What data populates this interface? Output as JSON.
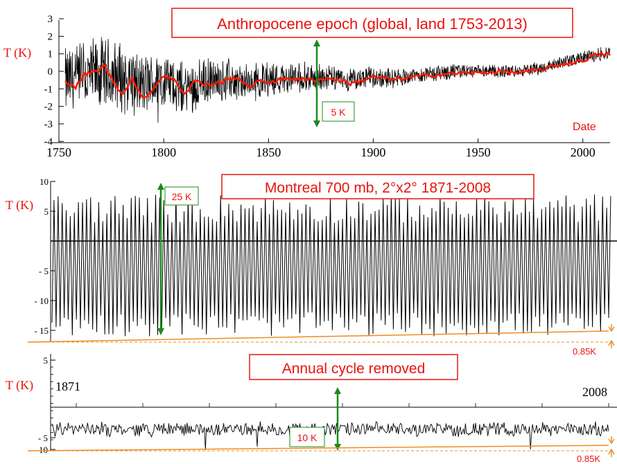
{
  "colors": {
    "trace": "#000000",
    "smooth": "#ff1a00",
    "label": "#e8130e",
    "green": "#1a8a1a",
    "orange": "#f08a24"
  },
  "chart_data": [
    {
      "type": "line",
      "title": "Anthropocene epoch (global, land 1753-2013)",
      "ylabel": "T (K)",
      "xlabel": "Date",
      "xlim": [
        1750,
        2013
      ],
      "ylim": [
        -4,
        3
      ],
      "xticks": [
        "1750",
        "1800",
        "1850",
        "1900",
        "1950",
        "2000"
      ],
      "yticks": [
        "3",
        "2",
        "1",
        "0",
        "-1",
        "-2",
        "-3",
        "-4"
      ],
      "scale_bar": "5 K",
      "series": [
        {
          "key": "monthly",
          "anchors_x": [
            1753,
            1760,
            1770,
            1780,
            1790,
            1800,
            1810,
            1820,
            1830,
            1840,
            1850,
            1860,
            1870,
            1880,
            1890,
            1900,
            1910,
            1920,
            1930,
            1940,
            1950,
            1960,
            1970,
            1980,
            1990,
            2000,
            2013
          ],
          "anchors_y": [
            -0.6,
            -0.4,
            -0.2,
            -0.3,
            -0.8,
            -0.5,
            -1.0,
            -0.6,
            -0.5,
            -0.7,
            -0.4,
            -0.4,
            -0.3,
            -0.4,
            -0.5,
            -0.3,
            -0.4,
            -0.2,
            -0.1,
            0.0,
            0.0,
            0.0,
            0.0,
            0.2,
            0.5,
            0.8,
            1.1
          ],
          "noise_amp": [
            2.2,
            2.4,
            2.4,
            2.3,
            2.0,
            1.8,
            1.6,
            1.5,
            1.3,
            1.2,
            1.1,
            1.0,
            0.9,
            0.8,
            0.7,
            0.7,
            0.6,
            0.5,
            0.5,
            0.5,
            0.4,
            0.4,
            0.4,
            0.4,
            0.4,
            0.4,
            0.5
          ]
        },
        {
          "key": "smoothed",
          "anchors_x": [
            1753,
            1758,
            1762,
            1768,
            1772,
            1776,
            1780,
            1785,
            1790,
            1795,
            1800,
            1806,
            1810,
            1815,
            1820,
            1828,
            1835,
            1840,
            1845,
            1850,
            1860,
            1870,
            1880,
            1890,
            1900,
            1910,
            1920,
            1930,
            1940,
            1950,
            1960,
            1970,
            1980,
            1990,
            2000,
            2005,
            2013
          ],
          "anchors_y": [
            -0.5,
            -0.9,
            -0.2,
            0.0,
            0.3,
            -0.6,
            -1.3,
            -0.4,
            -1.6,
            -1.0,
            -0.2,
            -0.6,
            -1.3,
            -0.5,
            -0.8,
            -0.6,
            -0.3,
            -0.9,
            -0.6,
            -0.6,
            -0.4,
            -0.5,
            -0.4,
            -0.7,
            -0.3,
            -0.5,
            -0.3,
            -0.2,
            -0.1,
            -0.1,
            0.0,
            -0.1,
            0.1,
            0.4,
            0.6,
            0.9,
            1.0
          ]
        }
      ]
    },
    {
      "type": "line",
      "title": "Montreal 700 mb, 2°x2° 1871-2008",
      "ylabel": "T (K)",
      "xlim": [
        1871,
        2008
      ],
      "ylim": [
        -17,
        11
      ],
      "yticks": [
        "10",
        "5",
        "- 5",
        "- 10",
        "- 15"
      ],
      "scale_bar": "25 K",
      "trend_label": "0.85K",
      "series": [
        {
          "key": "annual_cycle",
          "cycles": 138,
          "max": [
            3,
            8
          ],
          "min": [
            -16,
            -12
          ]
        }
      ]
    },
    {
      "type": "line",
      "title": "Annual cycle removed",
      "ylabel": "T (K)",
      "xlim": [
        1871,
        2008
      ],
      "ylim": [
        -10.5,
        6
      ],
      "yticks": [
        "5",
        "- 5",
        "- 10"
      ],
      "start_label": "1871",
      "end_label": "2008",
      "scale_bar": "10 K",
      "trend_label": "0.85K",
      "series": [
        {
          "key": "anomaly",
          "mean": -4.3,
          "noise_amp": 1.3
        }
      ]
    }
  ]
}
